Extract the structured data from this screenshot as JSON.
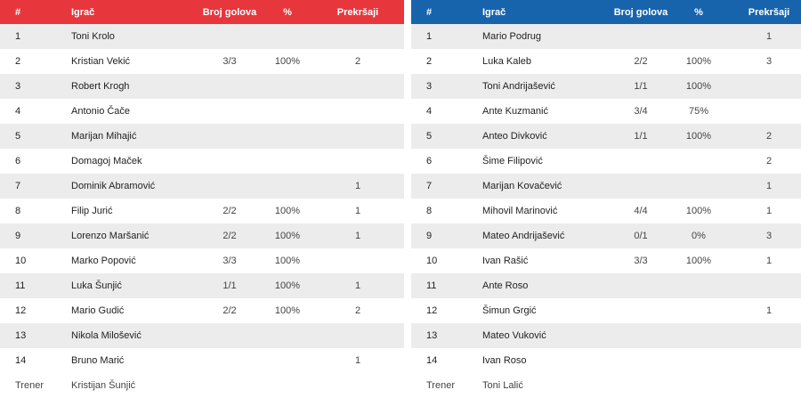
{
  "headers": {
    "num": "#",
    "player": "Igrač",
    "goals": "Broj golova",
    "pct": "%",
    "fouls": "Prekršaji"
  },
  "colors": {
    "left_header": "#e8363d",
    "right_header": "#1764ad",
    "row_alt": "#ececec"
  },
  "left_team": {
    "rows": [
      {
        "num": "1",
        "name": "Toni Krolo",
        "goals": "",
        "pct": "",
        "fouls": ""
      },
      {
        "num": "2",
        "name": "Kristian Vekić",
        "goals": "3/3",
        "pct": "100%",
        "fouls": "2"
      },
      {
        "num": "3",
        "name": "Robert Krogh",
        "goals": "",
        "pct": "",
        "fouls": ""
      },
      {
        "num": "4",
        "name": "Antonio Čače",
        "goals": "",
        "pct": "",
        "fouls": ""
      },
      {
        "num": "5",
        "name": "Marijan Mihajić",
        "goals": "",
        "pct": "",
        "fouls": ""
      },
      {
        "num": "6",
        "name": "Domagoj Maček",
        "goals": "",
        "pct": "",
        "fouls": ""
      },
      {
        "num": "7",
        "name": "Dominik Abramović",
        "goals": "",
        "pct": "",
        "fouls": "1"
      },
      {
        "num": "8",
        "name": "Filip Jurić",
        "goals": "2/2",
        "pct": "100%",
        "fouls": "1"
      },
      {
        "num": "9",
        "name": "Lorenzo Maršanić",
        "goals": "2/2",
        "pct": "100%",
        "fouls": "1"
      },
      {
        "num": "10",
        "name": "Marko Popović",
        "goals": "3/3",
        "pct": "100%",
        "fouls": ""
      },
      {
        "num": "11",
        "name": "Luka Šunjić",
        "goals": "1/1",
        "pct": "100%",
        "fouls": "1"
      },
      {
        "num": "12",
        "name": "Mario Gudić",
        "goals": "2/2",
        "pct": "100%",
        "fouls": "2"
      },
      {
        "num": "13",
        "name": "Nikola Milošević",
        "goals": "",
        "pct": "",
        "fouls": ""
      },
      {
        "num": "14",
        "name": "Bruno Marić",
        "goals": "",
        "pct": "",
        "fouls": "1"
      }
    ],
    "coach_label": "Trener",
    "coach_name": "Kristijan Šunjić"
  },
  "right_team": {
    "rows": [
      {
        "num": "1",
        "name": "Mario Podrug",
        "goals": "",
        "pct": "",
        "fouls": "1"
      },
      {
        "num": "2",
        "name": "Luka Kaleb",
        "goals": "2/2",
        "pct": "100%",
        "fouls": "3"
      },
      {
        "num": "3",
        "name": "Toni Andrijašević",
        "goals": "1/1",
        "pct": "100%",
        "fouls": ""
      },
      {
        "num": "4",
        "name": "Ante Kuzmanić",
        "goals": "3/4",
        "pct": "75%",
        "fouls": ""
      },
      {
        "num": "5",
        "name": "Anteo Divković",
        "goals": "1/1",
        "pct": "100%",
        "fouls": "2"
      },
      {
        "num": "6",
        "name": "Šime Filipović",
        "goals": "",
        "pct": "",
        "fouls": "2"
      },
      {
        "num": "7",
        "name": "Marijan Kovačević",
        "goals": "",
        "pct": "",
        "fouls": "1"
      },
      {
        "num": "8",
        "name": "Mihovil Marinović",
        "goals": "4/4",
        "pct": "100%",
        "fouls": "1"
      },
      {
        "num": "9",
        "name": "Mateo Andrijašević",
        "goals": "0/1",
        "pct": "0%",
        "fouls": "3"
      },
      {
        "num": "10",
        "name": "Ivan Rašić",
        "goals": "3/3",
        "pct": "100%",
        "fouls": "1"
      },
      {
        "num": "11",
        "name": "Ante Roso",
        "goals": "",
        "pct": "",
        "fouls": ""
      },
      {
        "num": "12",
        "name": "Šimun Grgić",
        "goals": "",
        "pct": "",
        "fouls": "1"
      },
      {
        "num": "13",
        "name": "Mateo Vuković",
        "goals": "",
        "pct": "",
        "fouls": ""
      },
      {
        "num": "14",
        "name": "Ivan Roso",
        "goals": "",
        "pct": "",
        "fouls": ""
      }
    ],
    "coach_label": "Trener",
    "coach_name": "Toni Lalić"
  }
}
